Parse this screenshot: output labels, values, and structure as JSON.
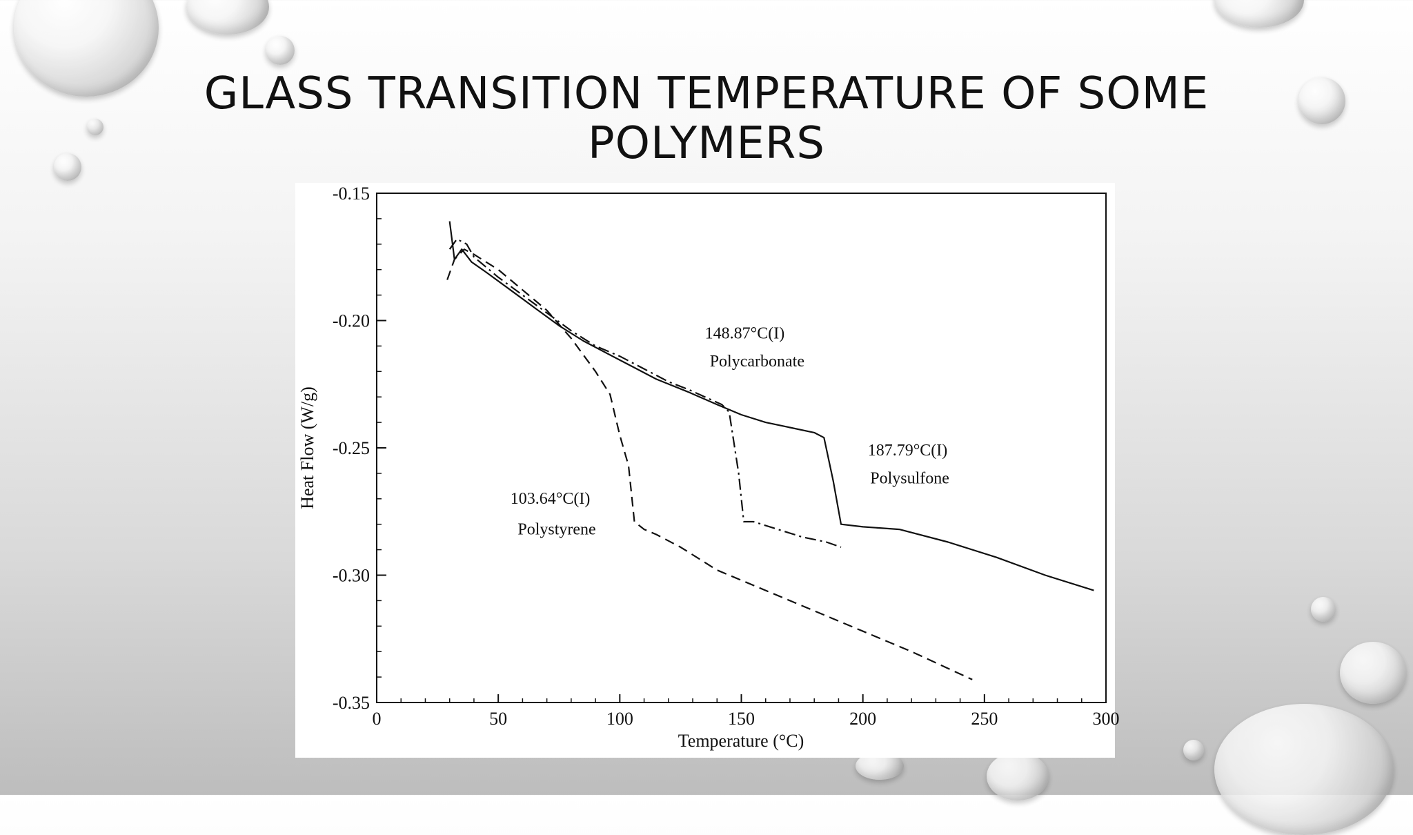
{
  "slide": {
    "title_line1": "GLASS TRANSITION TEMPERATURE OF SOME",
    "title_line2": "POLYMERS"
  },
  "chart_data": {
    "type": "line",
    "title": "",
    "xlabel": "Temperature (°C)",
    "ylabel": "Heat Flow (W/g)",
    "xlim": [
      0,
      300
    ],
    "ylim": [
      -0.35,
      -0.15
    ],
    "xticks": [
      0,
      50,
      100,
      150,
      200,
      250,
      300
    ],
    "yticks": [
      -0.15,
      -0.2,
      -0.25,
      -0.3,
      -0.35
    ],
    "xtick_labels": [
      "0",
      "50",
      "100",
      "150",
      "200",
      "250",
      "300"
    ],
    "ytick_labels": [
      "-0.15",
      "-0.20",
      "-0.25",
      "-0.30",
      "-0.35"
    ],
    "grid": false,
    "series": [
      {
        "name": "Polystyrene",
        "style": "dashed",
        "tg_label": "103.64°C(I)",
        "x": [
          29,
          32,
          36,
          40,
          50,
          60,
          70,
          80,
          90,
          96,
          100,
          103.6,
          106,
          110,
          115,
          125,
          140,
          160,
          180,
          200,
          220,
          245
        ],
        "y": [
          -0.184,
          -0.176,
          -0.172,
          -0.174,
          -0.18,
          -0.188,
          -0.196,
          -0.207,
          -0.22,
          -0.229,
          -0.245,
          -0.257,
          -0.279,
          -0.282,
          -0.284,
          -0.289,
          -0.298,
          -0.306,
          -0.314,
          -0.322,
          -0.33,
          -0.341
        ]
      },
      {
        "name": "Polycarbonate",
        "style": "dash-dot",
        "tg_label": "148.87°C(I)",
        "x": [
          30,
          33,
          37,
          40,
          50,
          60,
          70,
          80,
          90,
          100,
          110,
          120,
          128,
          135,
          142,
          145,
          148.9,
          151,
          155,
          165,
          175,
          185,
          191
        ],
        "y": [
          -0.172,
          -0.168,
          -0.17,
          -0.175,
          -0.183,
          -0.19,
          -0.197,
          -0.204,
          -0.21,
          -0.214,
          -0.219,
          -0.224,
          -0.227,
          -0.23,
          -0.233,
          -0.236,
          -0.26,
          -0.279,
          -0.279,
          -0.282,
          -0.285,
          -0.287,
          -0.289
        ]
      },
      {
        "name": "Polysulfone",
        "style": "solid",
        "tg_label": "187.79°C(I)",
        "x": [
          30,
          32,
          35,
          39,
          45,
          55,
          65,
          75,
          85,
          95,
          105,
          115,
          128,
          140,
          150,
          160,
          170,
          180,
          184,
          187.8,
          191,
          200,
          215,
          235,
          255,
          275,
          295
        ],
        "y": [
          -0.161,
          -0.176,
          -0.172,
          -0.177,
          -0.181,
          -0.188,
          -0.195,
          -0.202,
          -0.208,
          -0.213,
          -0.218,
          -0.223,
          -0.228,
          -0.233,
          -0.237,
          -0.24,
          -0.242,
          -0.244,
          -0.246,
          -0.263,
          -0.28,
          -0.281,
          -0.282,
          -0.287,
          -0.293,
          -0.3,
          -0.306
        ]
      }
    ],
    "annotations": [
      {
        "text": "148.87°C(I)",
        "x": 135,
        "y": -0.207
      },
      {
        "text": "Polycarbonate",
        "x": 137,
        "y": -0.218
      },
      {
        "text": "187.79°C(I)",
        "x": 202,
        "y": -0.253
      },
      {
        "text": "Polysulfone",
        "x": 203,
        "y": -0.264
      },
      {
        "text": "103.64°C(I)",
        "x": 55,
        "y": -0.272
      },
      {
        "text": "Polystyrene",
        "x": 58,
        "y": -0.284
      }
    ]
  }
}
